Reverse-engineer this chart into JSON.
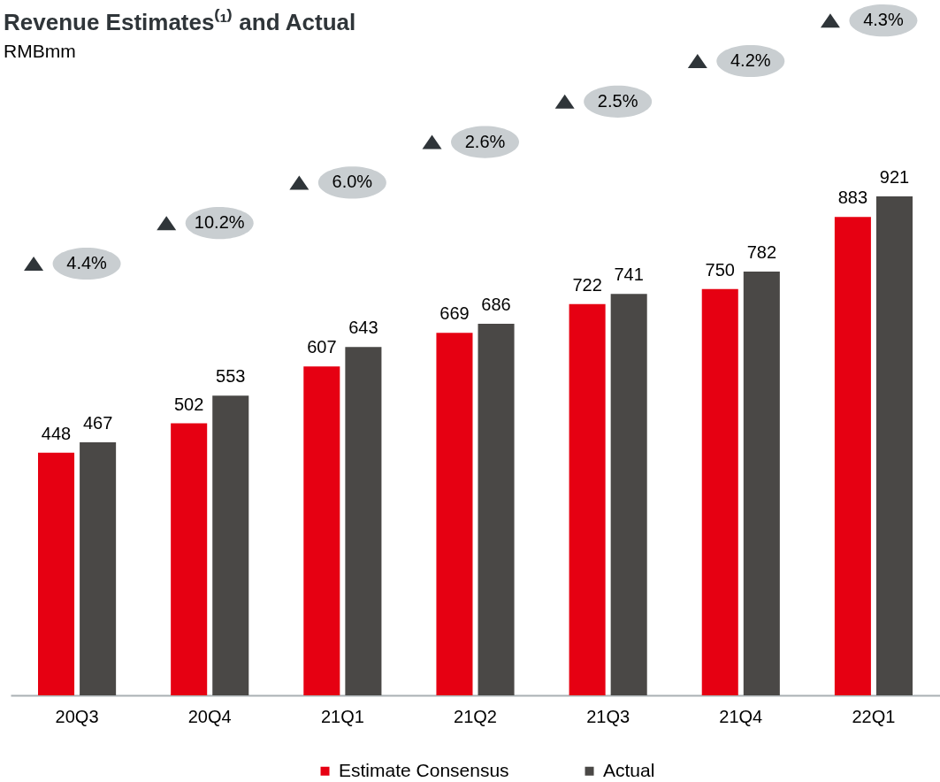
{
  "chart_data": {
    "type": "bar",
    "title": "Revenue Estimates⁽¹⁾ and Actual",
    "subtitle": "RMBmm",
    "categories": [
      "20Q3",
      "20Q4",
      "21Q1",
      "21Q2",
      "21Q3",
      "21Q4",
      "22Q1"
    ],
    "series": [
      {
        "name": "Estimate Consensus",
        "color": "#e60012",
        "values": [
          448,
          502,
          607,
          669,
          722,
          750,
          883
        ]
      },
      {
        "name": "Actual",
        "color": "#4a4846",
        "values": [
          467,
          553,
          643,
          686,
          741,
          782,
          921
        ]
      }
    ],
    "data_labels": true,
    "annotations": [
      "4.4%",
      "10.2%",
      "6.0%",
      "2.6%",
      "2.5%",
      "4.2%",
      "4.3%"
    ],
    "legend": "bottom"
  }
}
